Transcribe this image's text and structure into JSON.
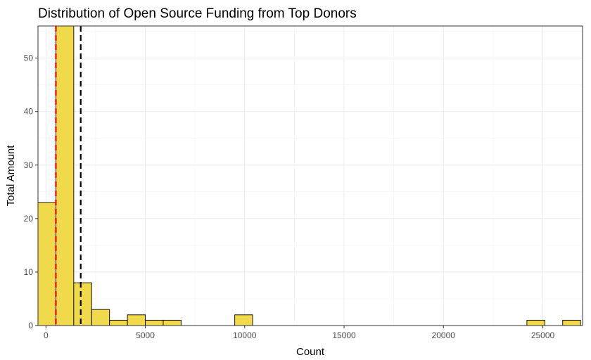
{
  "chart_data": {
    "type": "histogram",
    "title": "Distribution of Open Source Funding from Top Donors",
    "xlabel": "Count",
    "ylabel": "Total Amount",
    "xlim": [
      -400,
      27000
    ],
    "ylim": [
      0,
      56
    ],
    "x_ticks": [
      0,
      5000,
      10000,
      15000,
      20000,
      25000
    ],
    "x_tick_labels": [
      "0",
      "5000",
      "10000",
      "15000",
      "20000",
      "25000"
    ],
    "y_ticks": [
      0,
      10,
      20,
      30,
      40,
      50
    ],
    "y_tick_labels": [
      "0",
      "10",
      "20",
      "30",
      "40",
      "50"
    ],
    "bin_width": 900,
    "bins": [
      {
        "x0": -400,
        "x1": 500,
        "count": 23
      },
      {
        "x0": 500,
        "x1": 1400,
        "count": 56
      },
      {
        "x0": 1400,
        "x1": 2300,
        "count": 8
      },
      {
        "x0": 2300,
        "x1": 3200,
        "count": 3
      },
      {
        "x0": 3200,
        "x1": 4100,
        "count": 1
      },
      {
        "x0": 4100,
        "x1": 5000,
        "count": 2
      },
      {
        "x0": 5000,
        "x1": 5900,
        "count": 1
      },
      {
        "x0": 5900,
        "x1": 6800,
        "count": 1
      },
      {
        "x0": 9500,
        "x1": 10400,
        "count": 2
      },
      {
        "x0": 24200,
        "x1": 25100,
        "count": 1
      },
      {
        "x0": 26000,
        "x1": 26900,
        "count": 1
      }
    ],
    "reference_lines": [
      {
        "value": 500,
        "color": "#ff0000",
        "style": "dashed"
      },
      {
        "value": 1750,
        "color": "#000000",
        "style": "dashed"
      }
    ],
    "bar_fill": "#f0d94a",
    "bar_edge": "#000000",
    "grid": true,
    "legend": "none"
  }
}
